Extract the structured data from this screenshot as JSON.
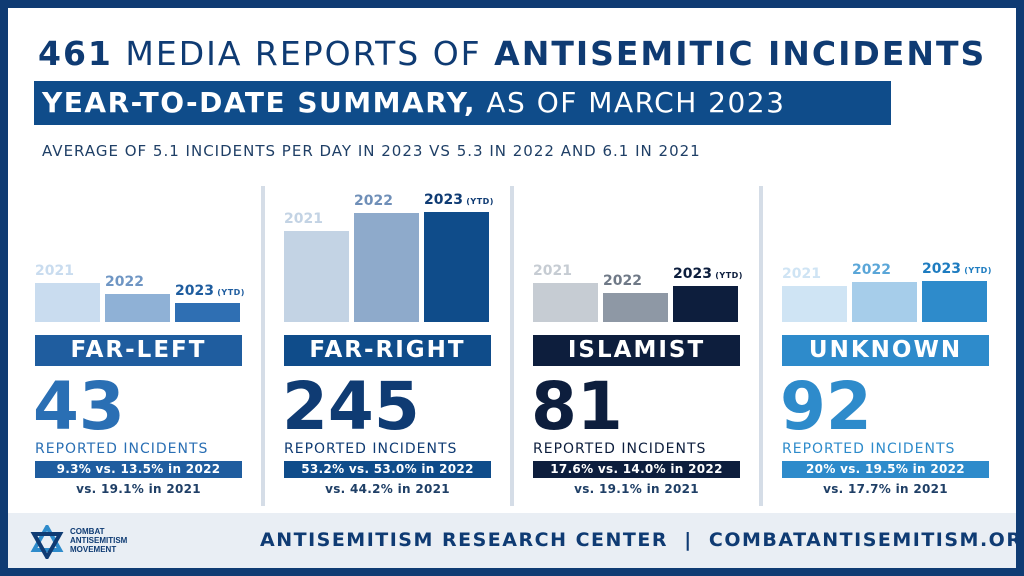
{
  "header": {
    "title_number": "461",
    "title_middle": "MEDIA REPORTS OF",
    "title_strong": "ANTISEMITIC INCIDENTS",
    "subtitle_strong": "YEAR-TO-DATE SUMMARY,",
    "subtitle_rest": "AS OF MARCH 2023",
    "average_line": "AVERAGE OF 5.1 INCIDENTS PER DAY IN 2023 VS 5.3 IN 2022 AND 6.1 IN 2021"
  },
  "chart_data": {
    "type": "bar",
    "categories": [
      "2021",
      "2022",
      "2023"
    ],
    "ytd_label": "(YTD)",
    "reported_label": "REPORTED INCIDENTS",
    "groups": [
      {
        "name": "FAR-LEFT",
        "count": "43",
        "values": [
          19.1,
          13.5,
          9.3
        ],
        "comparison": "9.3% vs. 13.5% in 2022",
        "comparison2": "vs. 19.1% in 2021",
        "colors": [
          "#c9dcef",
          "#8fb1d6",
          "#2f6fb3"
        ],
        "label_colors": [
          "#c9dcef",
          "#6f96c4",
          "#1f5d9f"
        ],
        "accent": "#1f5d9f",
        "count_color": "#2a6fb4"
      },
      {
        "name": "FAR-RIGHT",
        "count": "245",
        "values": [
          44.2,
          53.0,
          53.2
        ],
        "comparison": "53.2% vs. 53.0% in 2022",
        "comparison2": "vs. 44.2% in 2021",
        "colors": [
          "#c3d3e4",
          "#8eaacb",
          "#0f4c8a"
        ],
        "label_colors": [
          "#c3d3e4",
          "#6f8fb8",
          "#0f3b73"
        ],
        "accent": "#0f4c8a",
        "count_color": "#0f3b73"
      },
      {
        "name": "ISLAMIST",
        "count": "81",
        "values": [
          19.1,
          14.0,
          17.6
        ],
        "comparison": "17.6% vs. 14.0% in 2022",
        "comparison2": "vs. 19.1% in 2021",
        "colors": [
          "#c6ccd3",
          "#8e98a5",
          "#0d1e3d"
        ],
        "label_colors": [
          "#c6ccd3",
          "#6f7987",
          "#0d1e3d"
        ],
        "accent": "#0d1e3d",
        "count_color": "#0d1e3d"
      },
      {
        "name": "UNKNOWN",
        "count": "92",
        "values": [
          17.7,
          19.5,
          20.0
        ],
        "comparison": "20% vs. 19.5% in 2022",
        "comparison2": "vs. 17.7% in 2021",
        "colors": [
          "#cfe4f4",
          "#a6cdea",
          "#2e8bcb"
        ],
        "label_colors": [
          "#cfe4f4",
          "#5aa6d8",
          "#1e7cc0"
        ],
        "accent": "#2e8bcb",
        "count_color": "#2e8bcb"
      }
    ]
  },
  "footer": {
    "logo_line1": "COMBAT",
    "logo_line2": "ANTISEMITISM",
    "logo_line3": "MOVEMENT",
    "center_text": "ANTISEMITISM RESEARCH CENTER  |  COMBATANTISEMITISM.ORG"
  }
}
